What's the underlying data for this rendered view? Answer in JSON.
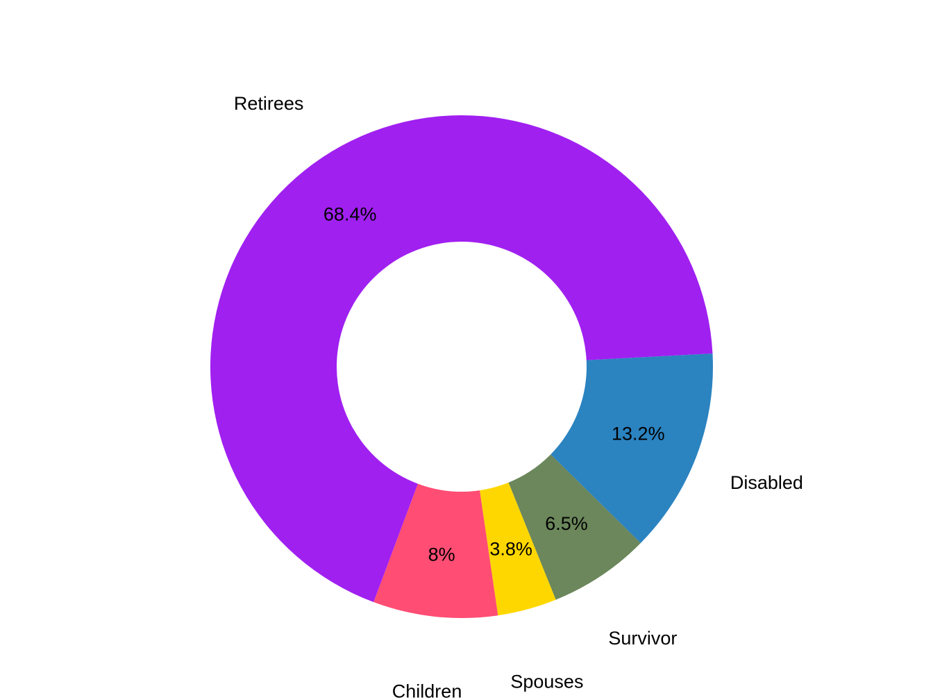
{
  "chart_data": {
    "type": "pie",
    "variant": "donut",
    "title": "",
    "legend": "none",
    "slices": [
      {
        "label": "Disabled",
        "value": 13.2,
        "value_label": "13.2%",
        "color": "#2B83C0"
      },
      {
        "label": "Survivor",
        "value": 6.5,
        "value_label": "6.5%",
        "color": "#6B875B"
      },
      {
        "label": "Spouses",
        "value": 3.8,
        "value_label": "3.8%",
        "color": "#FFD700"
      },
      {
        "label": "Children",
        "value": 8,
        "value_label": "8%",
        "color": "#FF4D74"
      },
      {
        "label": "Retirees",
        "value": 68.4,
        "value_label": "68.4%",
        "color": "#A020F0"
      }
    ]
  }
}
